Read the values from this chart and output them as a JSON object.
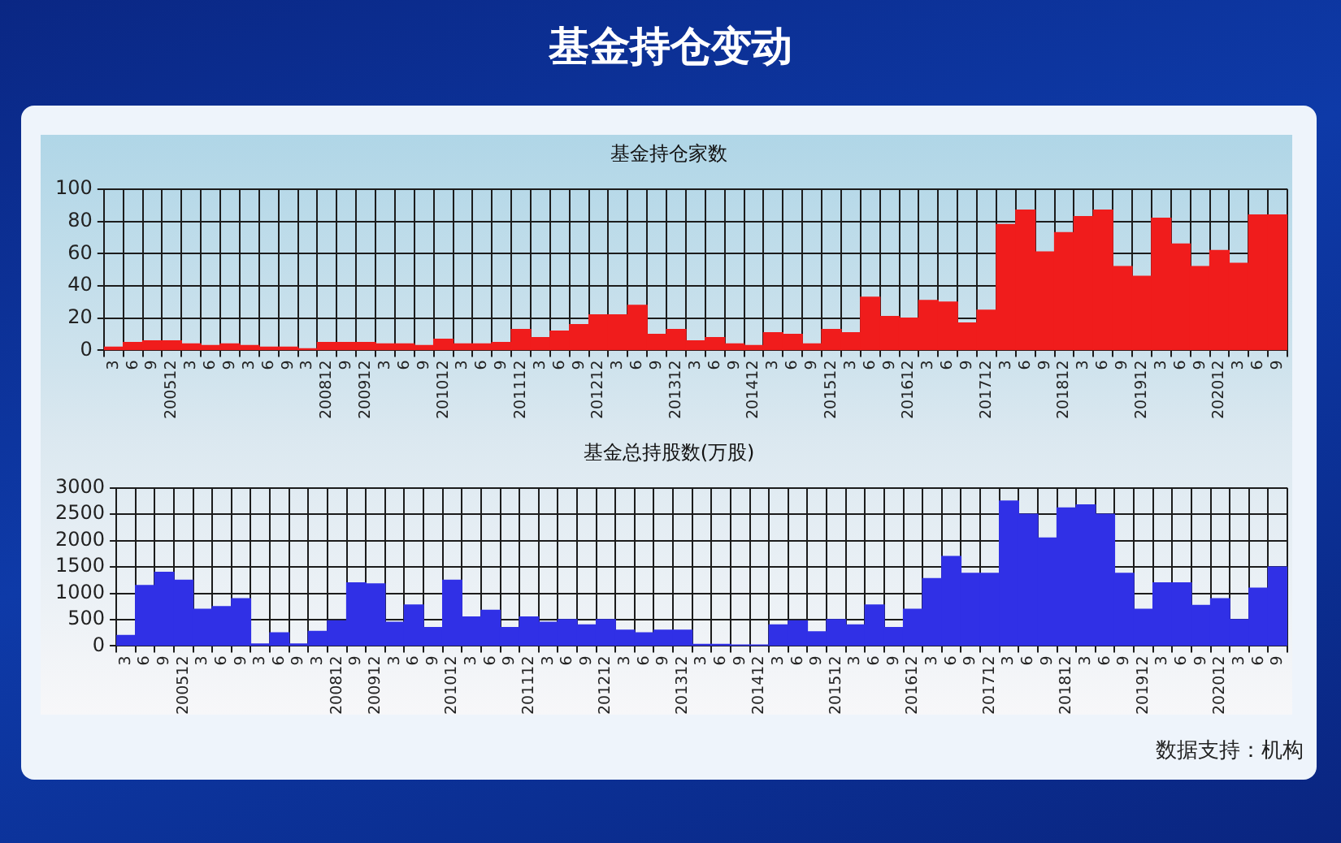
{
  "chart_data": [
    {
      "type": "bar",
      "title": "基金持仓变动",
      "subtitle": "基金持仓家数",
      "categories": [
        "3",
        "6",
        "9",
        "200512",
        "3",
        "6",
        "9",
        "3",
        "6",
        "9",
        "3",
        "200812",
        "9",
        "200912",
        "3",
        "6",
        "9",
        "201012",
        "3",
        "6",
        "9",
        "201112",
        "3",
        "6",
        "9",
        "201212",
        "3",
        "6",
        "9",
        "201312",
        "3",
        "6",
        "9",
        "201412",
        "3",
        "6",
        "9",
        "201512",
        "3",
        "6",
        "9",
        "201612",
        "3",
        "6",
        "9",
        "201712",
        "3",
        "6",
        "9",
        "201812",
        "3",
        "6",
        "9",
        "201912",
        "3",
        "6",
        "9",
        "202012",
        "3",
        "6",
        "9"
      ],
      "values": [
        2,
        5,
        6,
        6,
        4,
        3,
        4,
        3,
        2,
        2,
        1,
        5,
        5,
        5,
        4,
        4,
        3,
        7,
        4,
        4,
        5,
        13,
        8,
        12,
        16,
        22,
        22,
        28,
        10,
        13,
        6,
        8,
        4,
        3,
        11,
        10,
        4,
        13,
        11,
        33,
        21,
        20,
        31,
        30,
        17,
        25,
        78,
        87,
        61,
        73,
        83,
        87,
        52,
        46,
        82,
        66,
        52,
        62,
        54,
        84,
        84
      ],
      "color": "#f01c1c",
      "ylim": [
        0,
        100
      ],
      "yticks": [
        0,
        20,
        40,
        60,
        80,
        100
      ],
      "grid": true
    },
    {
      "type": "bar",
      "title": "基金总持股数(万股)",
      "categories": [
        "3",
        "6",
        "9",
        "200512",
        "3",
        "6",
        "9",
        "3",
        "6",
        "9",
        "3",
        "200812",
        "9",
        "200912",
        "3",
        "6",
        "9",
        "201012",
        "3",
        "6",
        "9",
        "201112",
        "3",
        "6",
        "9",
        "201212",
        "3",
        "6",
        "9",
        "201312",
        "3",
        "6",
        "9",
        "201412",
        "3",
        "6",
        "9",
        "201512",
        "3",
        "6",
        "9",
        "201612",
        "3",
        "6",
        "9",
        "201712",
        "3",
        "6",
        "9",
        "201812",
        "3",
        "6",
        "9",
        "201912",
        "3",
        "6",
        "9",
        "202012",
        "3",
        "6",
        "9"
      ],
      "values": [
        200,
        1150,
        1400,
        1250,
        700,
        750,
        900,
        40,
        250,
        40,
        280,
        480,
        1200,
        1180,
        450,
        780,
        350,
        1250,
        550,
        680,
        350,
        550,
        450,
        500,
        400,
        500,
        300,
        250,
        300,
        300,
        30,
        30,
        20,
        20,
        400,
        480,
        270,
        500,
        400,
        780,
        350,
        700,
        1280,
        1700,
        1380,
        1380,
        2750,
        2500,
        2050,
        2620,
        2680,
        2500,
        1380,
        700,
        1200,
        1200,
        770,
        900,
        500,
        1100,
        1500
      ],
      "color": "#3030e6",
      "ylim": [
        0,
        3000
      ],
      "yticks": [
        0,
        500,
        1000,
        1500,
        2000,
        2500,
        3000
      ],
      "grid": true,
      "annotations": [
        "数据支持：机构"
      ]
    }
  ]
}
